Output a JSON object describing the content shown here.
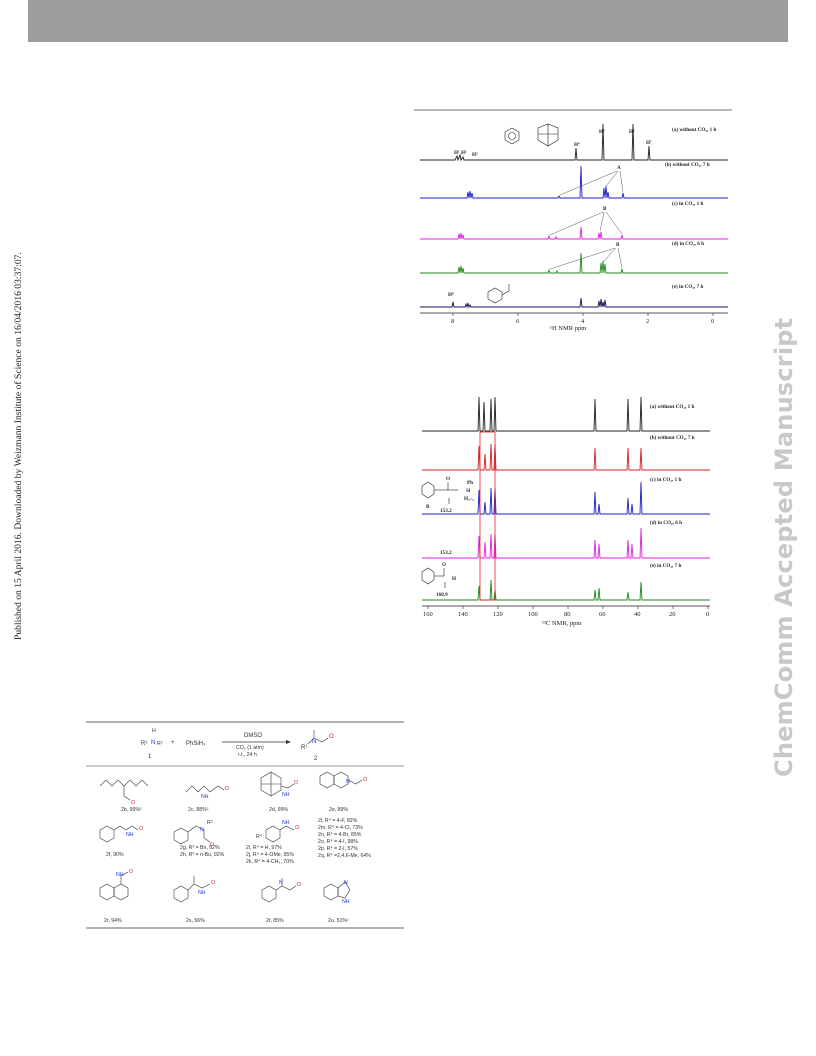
{
  "side_text_left": "Published on 15 April 2016. Downloaded by Weizmann Institute of Science on 16/04/2016 03:37:07.",
  "side_text_right": "ChemComm Accepted Manuscript",
  "colors": {
    "header_bar": "#9d9d9d",
    "watermark": "#c8c8c8",
    "spec_black": "#222222",
    "spec_blue": "#1e1ec8",
    "spec_magenta": "#e01ee0",
    "spec_green": "#1f8a1f",
    "spec_navy": "#141450",
    "spec_red": "#d21f1f",
    "arrow_red": "#e02020"
  },
  "h_nmr": {
    "spectra": [
      {
        "label": "(a) without CO₂, 1 h",
        "color": "#222222"
      },
      {
        "label": "(b) without CO₂, 7 h",
        "color": "#1e1ec8"
      },
      {
        "label": "(c) in CO₂, 1 h",
        "color": "#e01ee0"
      },
      {
        "label": "(d) in CO₂, 6 h",
        "color": "#1f8a1f"
      },
      {
        "label": "(e) in CO₂, 7 h",
        "color": "#141450"
      }
    ],
    "peak_labels": {
      "a": "H¹",
      "b": "H²",
      "c": "H³",
      "d": "H⁴",
      "e": "H⁵",
      "f": "H⁶",
      "g": "H⁷"
    },
    "marker_A": "A",
    "marker_B": "B",
    "proton_label": "H⁸",
    "x_ticks": [
      "8",
      "6",
      "4",
      "2",
      "0"
    ],
    "x_label": "¹H NMR ppm"
  },
  "c_nmr": {
    "spectra": [
      {
        "label": "(a) without CO₂, 1 h",
        "color": "#222222"
      },
      {
        "label": "(b) without CO₂, 7 h",
        "color": "#d21f1f"
      },
      {
        "label": "(c) in CO₂, 1 h",
        "color": "#1e1ec8"
      },
      {
        "label": "(d) in CO₂, 6 h",
        "color": "#e01ee0"
      },
      {
        "label": "(e) in CO₂, 7 h",
        "color": "#1f8a1f"
      }
    ],
    "annotations": {
      "shift_1": "153.2",
      "shift_2": "153.2",
      "shift_3": "160.9",
      "marker_B": "B",
      "ph": "Ph",
      "si": "Si",
      "hx": "H₃₋ₓ",
      "o": "O",
      "h": "H"
    },
    "x_ticks": [
      "160",
      "140",
      "120",
      "100",
      "80",
      "60",
      "40",
      "20",
      "0"
    ],
    "x_label": "¹³C NMR, ppm"
  },
  "scheme": {
    "reagent_1": "R¹",
    "amine_h": "H",
    "amine_r2": "R²",
    "plus": "+",
    "silane": "PhSiH₃",
    "solvent": "DMSO",
    "gas": "CO₂ (1 atm)",
    "conditions": "r.t., 24 h",
    "compound_1": "1",
    "compound_2": "2",
    "product_r1": "R¹",
    "entries": [
      "2b, 99%ᶜ",
      "2c, 88%ᶜ",
      "2d, 99%",
      "2e, 89%",
      "2f, 90%",
      "2g, R³ = Bn, 82%",
      "2h, R³ = n-Bu, 92%",
      "2i, R⁴ = H, 97%",
      "2j, R⁴ = 4-OMe, 95%",
      "2k, R⁴ = 4-CH₃, 70%",
      "2l, R⁴ = 4-F, 82%",
      "2m, R⁴ = 4-Cl, 73%",
      "2n, R⁴ = 4-Br, 85%",
      "2o, R⁴ = 4-I, 98%",
      "2p, R⁴ = 2-I, 57%",
      "2q, R⁴ =2,4,6-Me, 64%",
      "2r, 94%",
      "2s, 56%",
      "2t, 85%",
      "2u, 51%ᶜ"
    ],
    "r3_label": "R³",
    "r4_label": "R⁴",
    "nh": "NH",
    "n": "N",
    "h": "H",
    "o": "O"
  }
}
